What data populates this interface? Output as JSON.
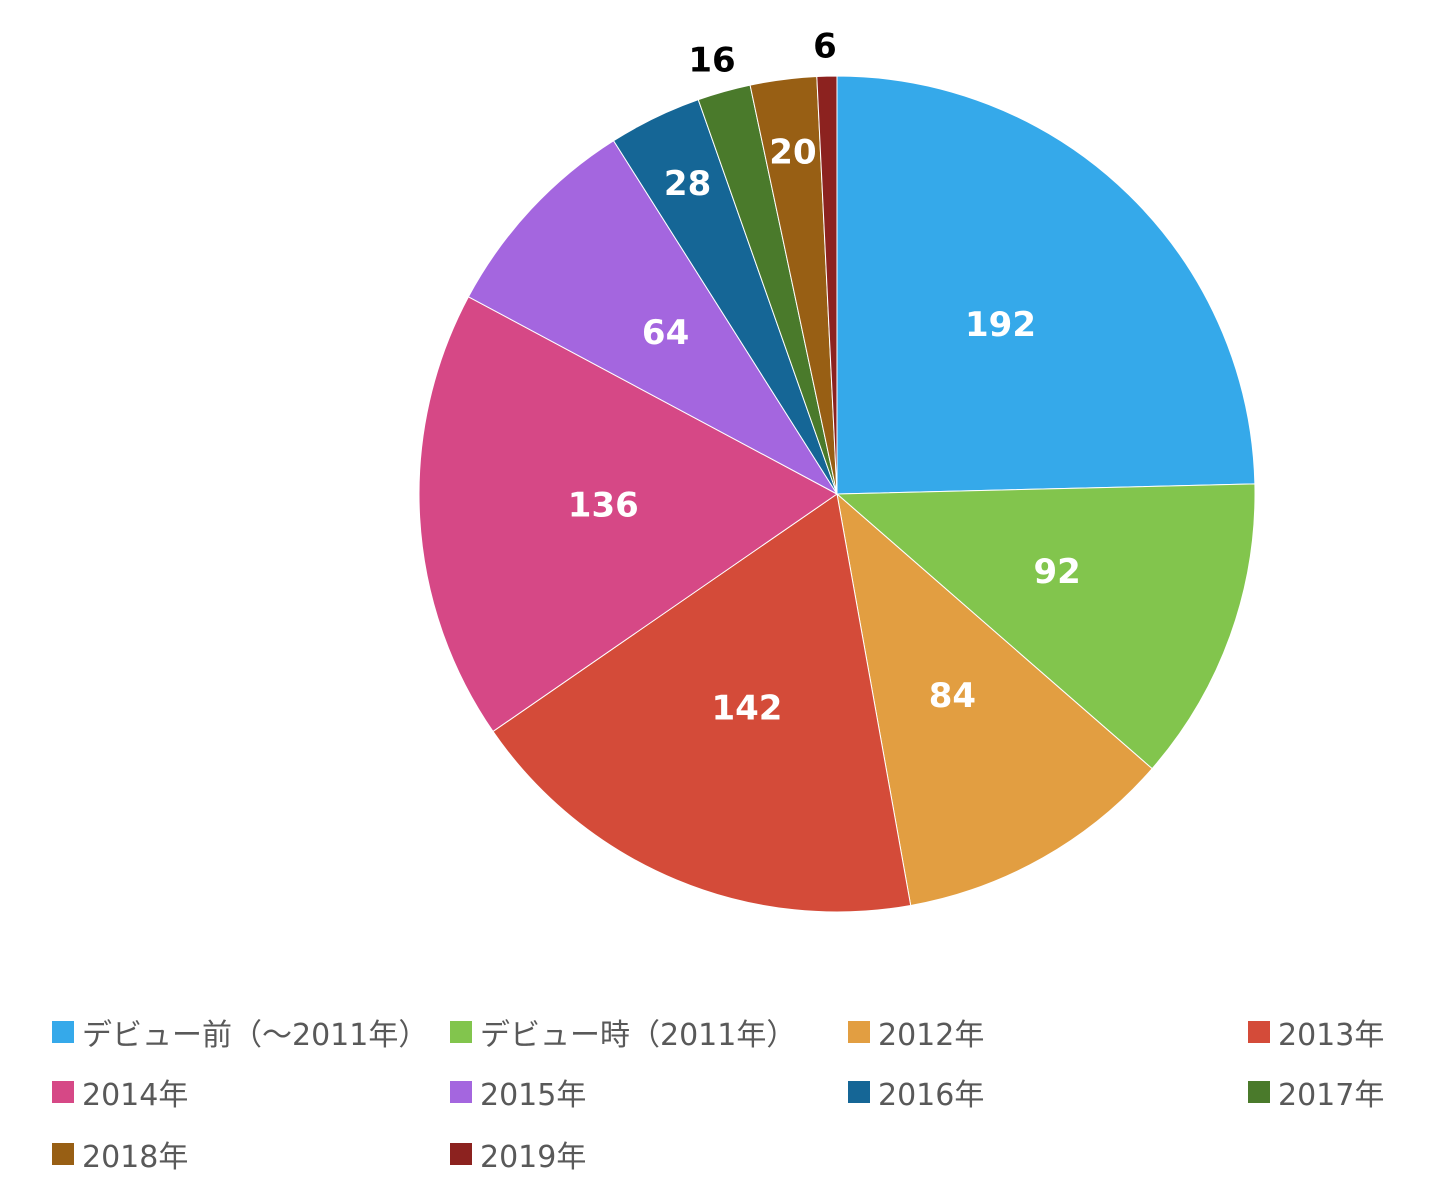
{
  "chart_data": {
    "type": "pie",
    "title": "",
    "start_angle_deg": 0,
    "direction": "clockwise",
    "categories": [
      "デビュー前（〜2011年）",
      "デビュー時（2011年）",
      "2012年",
      "2013年",
      "2014年",
      "2015年",
      "2016年",
      "2017年",
      "2018年",
      "2019年"
    ],
    "values": [
      192,
      92,
      84,
      142,
      136,
      64,
      28,
      16,
      20,
      6
    ],
    "colors": [
      "#35A9EA",
      "#82C54D",
      "#E29E41",
      "#D44B39",
      "#D64886",
      "#A466DF",
      "#156696",
      "#4A7A2B",
      "#985F14",
      "#8C221F"
    ],
    "data_labels": [
      "192",
      "92",
      "84",
      "142",
      "136",
      "64",
      "28",
      "16",
      "20",
      "6"
    ],
    "label_outside": [
      false,
      false,
      false,
      false,
      false,
      false,
      false,
      true,
      false,
      true
    ],
    "label_color_inside": "#ffffff",
    "label_color_outside": "#000000",
    "legend_position": "bottom"
  }
}
